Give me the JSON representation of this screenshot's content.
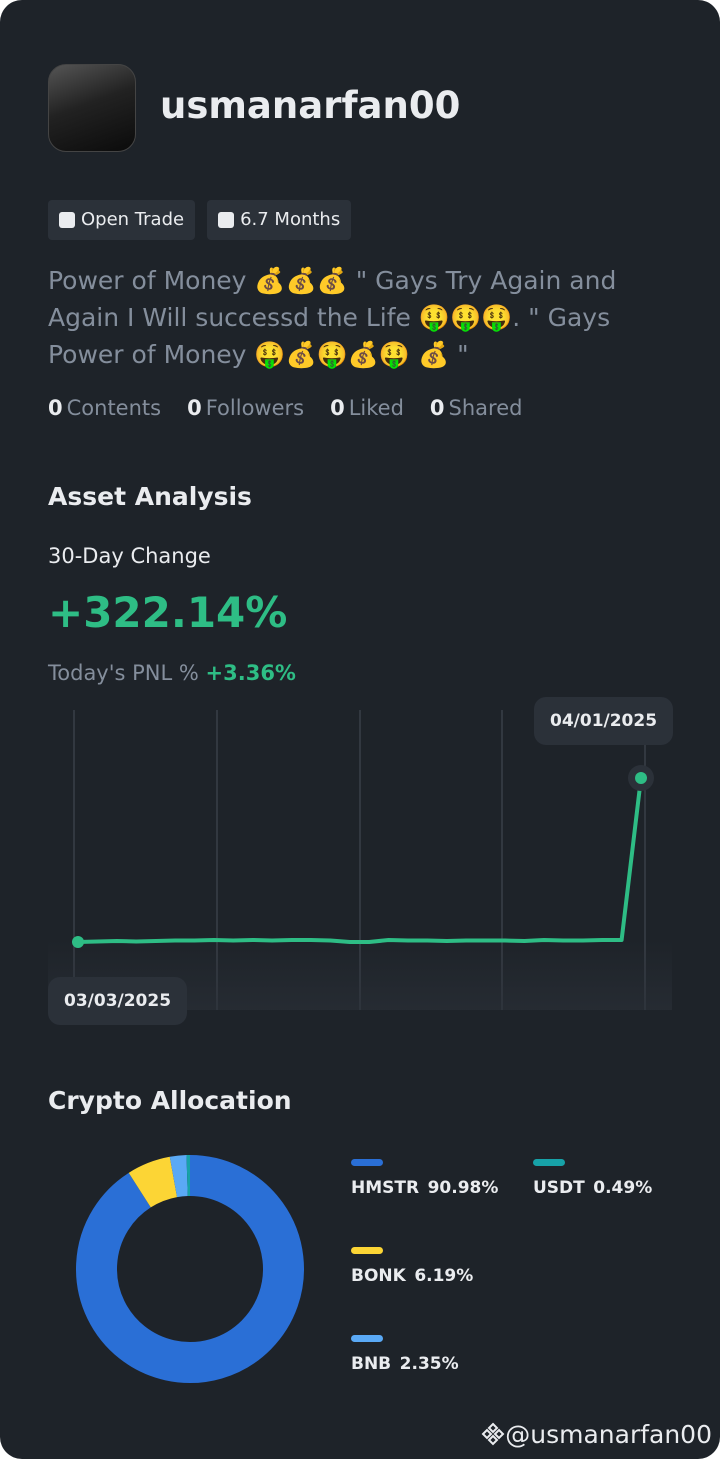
{
  "profile": {
    "username": "usmanarfan00",
    "badges": [
      "Open Trade",
      "6.7 Months"
    ],
    "bio": "Power of Money 💰💰💰 \" Gays Try Again and Again I Will successd the Life 🤑🤑🤑.   \" Gays Power of Money 🤑💰🤑💰🤑 💰 \"",
    "stats": [
      {
        "value": 0,
        "label": "Contents"
      },
      {
        "value": 0,
        "label": "Followers"
      },
      {
        "value": 0,
        "label": "Liked"
      },
      {
        "value": 0,
        "label": "Shared"
      }
    ]
  },
  "asset_analysis": {
    "title": "Asset Analysis",
    "change_label": "30-Day Change",
    "change": "+322.14%",
    "pnl_label": "Today's PNL %",
    "pnl": "+3.36%",
    "chart": {
      "start_date": "03/03/2025",
      "end_date": "04/01/2025",
      "color": "#2ebd85",
      "values": [
        0,
        1,
        2,
        1,
        2,
        3,
        3,
        4,
        3,
        4,
        3,
        4,
        4,
        3,
        0,
        0,
        4,
        3,
        3,
        2,
        3,
        3,
        3,
        2,
        4,
        3,
        3,
        4,
        4,
        322.14
      ]
    }
  },
  "crypto_allocation": {
    "title": "Crypto Allocation",
    "assets": [
      "HMSTR",
      "BONK",
      "BNB",
      "USDT"
    ],
    "values": [
      90.98,
      6.19,
      2.35,
      0.49
    ],
    "value_labels": [
      "90.98%",
      "6.19%",
      "2.35%",
      "0.49%"
    ],
    "colors": [
      "#2a6fd6",
      "#fcd535",
      "#5aa9f5",
      "#17a2a8"
    ]
  },
  "footer": {
    "handle": "@usmanarfan00"
  }
}
